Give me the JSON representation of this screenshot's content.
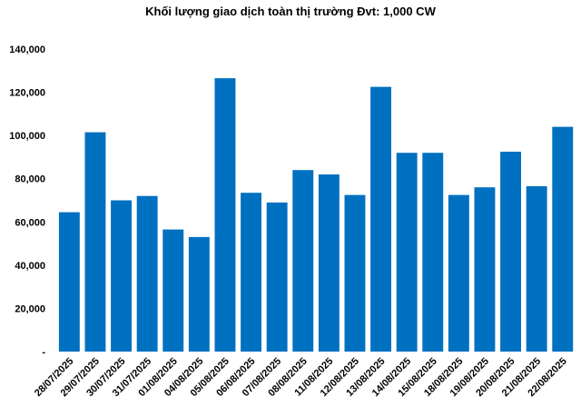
{
  "chart_data": {
    "type": "bar",
    "title": "Khối lượng giao dịch toàn thị trường Đvt: 1,000 CW",
    "xlabel": "",
    "ylabel": "",
    "ylim": [
      0,
      140000
    ],
    "y_ticks": [
      0,
      20000,
      40000,
      60000,
      80000,
      100000,
      120000,
      140000
    ],
    "y_tick_labels": [
      "-",
      "20,000",
      "40,000",
      "60,000",
      "80,000",
      "100,000",
      "120,000",
      "140,000"
    ],
    "grid": false,
    "bar_color": "#0070C0",
    "categories": [
      "28/07/2025",
      "29/07/2025",
      "30/07/2025",
      "31/07/2025",
      "01/08/2025",
      "04/08/2025",
      "05/08/2025",
      "06/08/2025",
      "07/08/2025",
      "08/08/2025",
      "11/08/2025",
      "12/08/2025",
      "13/08/2025",
      "14/08/2025",
      "15/08/2025",
      "18/08/2025",
      "19/08/2025",
      "20/08/2025",
      "21/08/2025",
      "22/08/2025"
    ],
    "values": [
      64500,
      101500,
      70000,
      72000,
      56500,
      53000,
      126500,
      73500,
      69000,
      84000,
      82000,
      72500,
      122500,
      92000,
      92000,
      72500,
      76000,
      92500,
      76500,
      104000
    ]
  }
}
